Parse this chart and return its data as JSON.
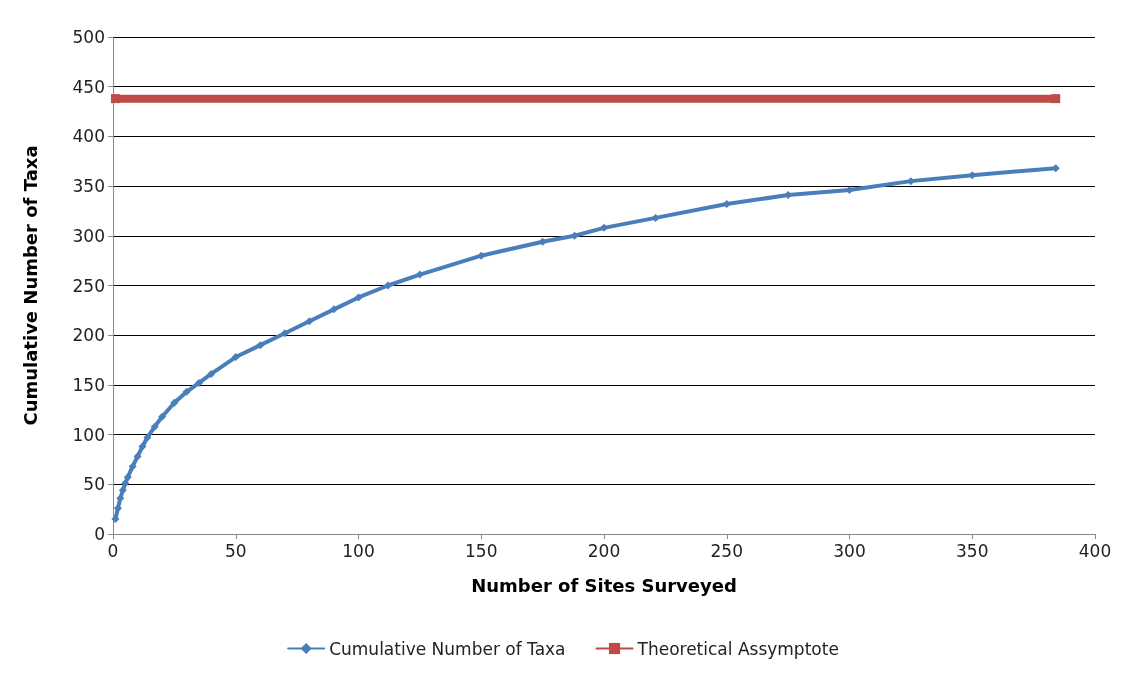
{
  "chart_data": {
    "type": "line",
    "xlabel": "Number of Sites Surveyed",
    "ylabel": "Cumulative Number of Taxa",
    "xlim": [
      0,
      400
    ],
    "xticks": [
      0,
      50,
      100,
      150,
      200,
      250,
      300,
      350,
      400
    ],
    "ylim": [
      0,
      500
    ],
    "yticks": [
      0,
      50,
      100,
      150,
      200,
      250,
      300,
      350,
      400,
      450,
      500
    ],
    "grid": "y",
    "legend": "bottom",
    "series": [
      {
        "name": "Cumulative Number of Taxa",
        "color": "#4a7ebb",
        "marker": "diamond",
        "x": [
          1,
          2,
          3,
          4,
          5,
          6,
          8,
          10,
          12,
          14,
          17,
          20,
          25,
          30,
          35,
          40,
          50,
          60,
          70,
          80,
          90,
          100,
          112,
          125,
          150,
          175,
          188,
          200,
          221,
          250,
          275,
          300,
          325,
          350,
          384
        ],
        "values": [
          15,
          26,
          36,
          44,
          51,
          57,
          68,
          78,
          88,
          97,
          108,
          118,
          132,
          143,
          152,
          161,
          178,
          190,
          202,
          214,
          226,
          238,
          250,
          261,
          280,
          294,
          300,
          308,
          318,
          332,
          341,
          346,
          355,
          361,
          368
        ]
      },
      {
        "name": "Theoretical Assymptote",
        "color": "#be4b48",
        "marker": "square",
        "x": [
          1,
          384
        ],
        "values": [
          438,
          438
        ]
      }
    ]
  }
}
